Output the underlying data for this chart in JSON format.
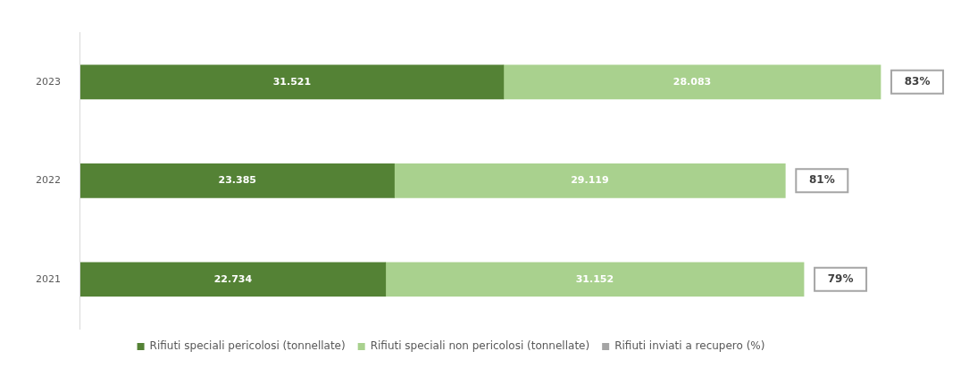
{
  "chart_data": {
    "type": "bar",
    "orientation": "horizontal",
    "stacked": true,
    "categories": [
      "2023",
      "2022",
      "2021"
    ],
    "series": [
      {
        "name": "Rifiuti speciali pericolosi (tonnellate)",
        "color": "#548235",
        "values": [
          31521,
          23385,
          22734
        ],
        "value_labels": [
          "31.521",
          "23.385",
          "22.734"
        ]
      },
      {
        "name": "Rifiuti speciali non pericolosi (tonnellate)",
        "color": "#a9d18e",
        "values": [
          28083,
          29119,
          31152
        ],
        "value_labels": [
          "28.083",
          "29.119",
          "31.152"
        ]
      },
      {
        "name": "Rifiuti inviati a recupero (%)",
        "color": "#a5a5a5",
        "values": [
          null,
          null,
          null
        ]
      }
    ],
    "annotations": [
      {
        "text": "83%",
        "x": 59604,
        "y": "2023"
      },
      {
        "text": "81%",
        "x": 52504,
        "y": "2022"
      },
      {
        "text": "79%",
        "x": 53886,
        "y": "2021"
      }
    ],
    "legend": "bottom",
    "grid": false,
    "tick_labels": "y"
  }
}
